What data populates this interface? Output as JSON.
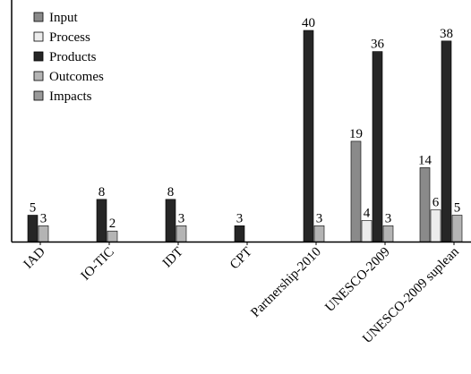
{
  "chart_data": {
    "type": "bar",
    "title": "",
    "xlabel": "",
    "ylabel": "",
    "ylim": [
      0,
      42
    ],
    "grid": false,
    "legend_position": "top-left",
    "categories": [
      "IAD",
      "IO-TIC",
      "IDT",
      "CPT",
      "Partnership-2010",
      "UNESCO-2009",
      "UNESCO-2009 suplean"
    ],
    "series": [
      {
        "name": "Input",
        "color": "#8a8a8a",
        "values": [
          null,
          null,
          null,
          null,
          null,
          19,
          14
        ]
      },
      {
        "name": "Process",
        "color": "#ececec",
        "values": [
          null,
          null,
          null,
          null,
          null,
          4,
          6
        ]
      },
      {
        "name": "Products",
        "color": "#262626",
        "values": [
          5,
          8,
          8,
          3,
          40,
          36,
          38
        ]
      },
      {
        "name": "Outcomes",
        "color": "#b4b4b4",
        "values": [
          3,
          2,
          3,
          null,
          3,
          3,
          5
        ]
      },
      {
        "name": "Impacts",
        "color": "#9a9a9a",
        "values": [
          null,
          null,
          null,
          null,
          null,
          null,
          null
        ]
      }
    ],
    "data_labels": {
      "Input": [
        null,
        null,
        null,
        null,
        null,
        "19",
        "14"
      ],
      "Process": [
        null,
        null,
        null,
        null,
        null,
        "4",
        "6"
      ],
      "Products": [
        "5",
        "8",
        "8",
        "3",
        "40",
        "36",
        "38"
      ],
      "Outcomes": [
        "3",
        "2",
        "3",
        null,
        "3",
        "3",
        "5"
      ],
      "Impacts": [
        null,
        null,
        null,
        null,
        null,
        null,
        null
      ]
    }
  }
}
